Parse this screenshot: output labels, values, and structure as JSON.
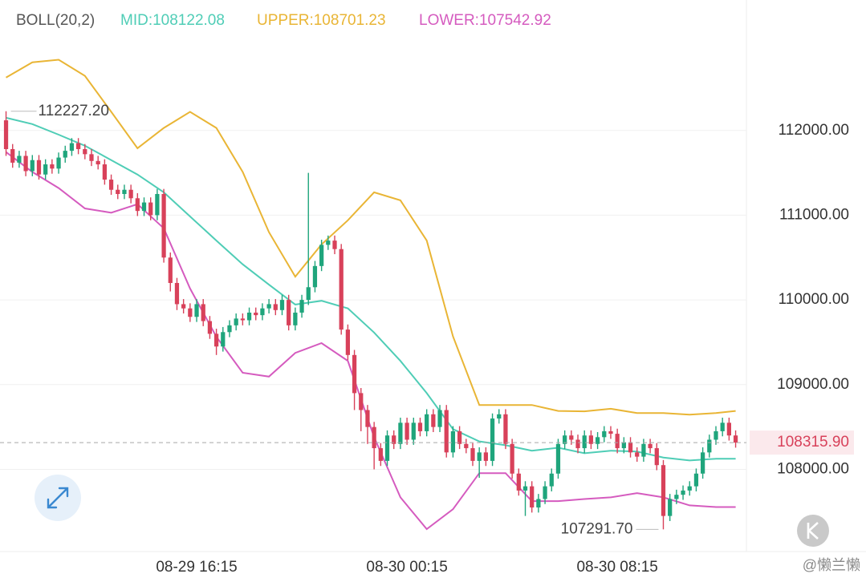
{
  "chart_data": {
    "type": "candlestick",
    "indicator": "BOLL(20,2)",
    "xlim": [
      -0.92,
      112.64
    ],
    "ylim": [
      107030,
      113540
    ],
    "xticks": [
      {
        "value": 29,
        "label": "08-29 16:15"
      },
      {
        "value": 61,
        "label": "08-30 00:15"
      },
      {
        "value": 93,
        "label": "08-30 08:15"
      }
    ],
    "yticks": [
      {
        "value": 108000,
        "label": "108000.00"
      },
      {
        "value": 109000,
        "label": "109000.00"
      },
      {
        "value": 110000,
        "label": "110000.00"
      },
      {
        "value": 111000,
        "label": "111000.00"
      },
      {
        "value": 112000,
        "label": "112000.00"
      }
    ],
    "grid": true,
    "up_color": "#1fa57c",
    "down_color": "#d8415a",
    "candles": {
      "open": [
        112120,
        111780,
        111620,
        111700,
        111520,
        111650,
        111480,
        111600,
        111550,
        111680,
        111760,
        111850,
        111780,
        111720,
        111640,
        111600,
        111420,
        111300,
        111250,
        111300,
        111200,
        111050,
        111150,
        111000,
        111250,
        110500,
        110200,
        109950,
        109900,
        109800,
        109950,
        109750,
        109600,
        109450,
        109620,
        109700,
        109780,
        109760,
        109850,
        109820,
        109900,
        109950,
        109880,
        110000,
        109700,
        109850,
        110000,
        110150,
        110400,
        110650,
        110700,
        110600,
        109650,
        109350,
        108900,
        108700,
        108500,
        108250,
        108100,
        108400,
        108300,
        108550,
        108350,
        108550,
        108450,
        108650,
        108500,
        108700,
        108200,
        108450,
        108300,
        108250,
        108100,
        108200,
        108100,
        108600,
        108650,
        108300,
        107950,
        107750,
        107800,
        107550,
        107650,
        107800,
        107950,
        108300,
        108400,
        108350,
        108250,
        108400,
        108300,
        108380,
        108450,
        108420,
        108250,
        108320,
        108200,
        108150,
        108300,
        108250,
        108050,
        107450,
        107650,
        107700,
        107750,
        107800,
        107950,
        108200,
        108350,
        108450,
        108550,
        108400
      ],
      "high": [
        112227.2,
        111840,
        111760,
        111760,
        111710,
        111710,
        111660,
        111660,
        111740,
        111820,
        111910,
        111910,
        111840,
        111780,
        111700,
        111660,
        111480,
        111360,
        111360,
        111360,
        111260,
        111210,
        111210,
        111310,
        111310,
        110560,
        110260,
        110010,
        109960,
        110010,
        110010,
        109810,
        109660,
        109680,
        109760,
        109840,
        109840,
        109910,
        109910,
        109960,
        110010,
        110010,
        110060,
        110060,
        109910,
        110060,
        111500,
        110460,
        110710,
        110760,
        110760,
        110660,
        109710,
        109410,
        108960,
        108760,
        108560,
        108310,
        108460,
        108460,
        108610,
        108610,
        108610,
        108610,
        108710,
        108710,
        108760,
        108760,
        108510,
        108510,
        108360,
        108310,
        108260,
        108260,
        108660,
        108710,
        108710,
        108360,
        108010,
        107860,
        107860,
        107710,
        107860,
        108010,
        108360,
        108460,
        108460,
        108410,
        108460,
        108460,
        108440,
        108510,
        108510,
        108480,
        108380,
        108380,
        108260,
        108360,
        108360,
        108310,
        108110,
        107710,
        107760,
        107810,
        107860,
        108010,
        108260,
        108410,
        108510,
        108610,
        108610,
        108460
      ],
      "low": [
        111700,
        111560,
        111560,
        111460,
        111460,
        111420,
        111420,
        111490,
        111490,
        111620,
        111700,
        111720,
        111660,
        111580,
        111540,
        111360,
        111240,
        111190,
        111190,
        111140,
        110990,
        110990,
        110940,
        110940,
        110440,
        110100,
        109880,
        109840,
        109740,
        109740,
        109690,
        109540,
        109350,
        109390,
        109560,
        109640,
        109700,
        109700,
        109760,
        109760,
        109840,
        109820,
        109820,
        109640,
        109640,
        109790,
        109940,
        110090,
        110340,
        110590,
        110540,
        109590,
        109290,
        108700,
        108450,
        108300,
        108000,
        108040,
        108040,
        108240,
        108240,
        108290,
        108290,
        108390,
        108390,
        108440,
        108440,
        108140,
        108140,
        108240,
        108190,
        108040,
        107900,
        108040,
        108040,
        108540,
        108240,
        107890,
        107690,
        107450,
        107490,
        107490,
        107590,
        107740,
        107890,
        108240,
        108290,
        108190,
        108190,
        108240,
        108240,
        108320,
        108360,
        108190,
        108190,
        108140,
        108090,
        108090,
        108190,
        107990,
        107291.7,
        107390,
        107590,
        107640,
        107690,
        107740,
        107890,
        108140,
        108290,
        108390,
        108340,
        108256
      ],
      "close": [
        111780,
        111620,
        111700,
        111520,
        111650,
        111480,
        111600,
        111550,
        111680,
        111760,
        111850,
        111780,
        111720,
        111640,
        111600,
        111420,
        111300,
        111250,
        111300,
        111200,
        111050,
        111150,
        111000,
        111250,
        110500,
        110200,
        109950,
        109900,
        109800,
        109950,
        109750,
        109600,
        109450,
        109620,
        109700,
        109780,
        109760,
        109850,
        109820,
        109900,
        109950,
        109880,
        110000,
        109700,
        109850,
        110000,
        110150,
        110400,
        110650,
        110700,
        110600,
        109650,
        109350,
        108900,
        108700,
        108500,
        108250,
        108100,
        108400,
        108300,
        108550,
        108350,
        108550,
        108450,
        108650,
        108500,
        108700,
        108200,
        108450,
        108300,
        108250,
        108100,
        108200,
        108100,
        108600,
        108650,
        108300,
        107950,
        107750,
        107800,
        107550,
        107650,
        107800,
        107950,
        108300,
        108400,
        108350,
        108250,
        108400,
        108300,
        108380,
        108450,
        108420,
        108250,
        108320,
        108200,
        108150,
        108300,
        108250,
        108050,
        107450,
        107650,
        107700,
        107750,
        107800,
        107950,
        108200,
        108350,
        108450,
        108550,
        108400,
        108315.9
      ]
    },
    "bands": {
      "x": [
        0,
        4,
        8,
        12,
        16,
        20,
        24,
        28,
        32,
        36,
        40,
        44,
        48,
        52,
        56,
        60,
        64,
        68,
        72,
        76,
        80,
        84,
        88,
        92,
        96,
        100,
        104,
        108,
        111
      ],
      "series": [
        {
          "name": "MID:108122.08",
          "color": "#4fcdb6",
          "values": [
            112150,
            112075,
            111950,
            111820,
            111650,
            111480,
            111270,
            110985,
            110700,
            110420,
            110180,
            109945,
            109990,
            109900,
            109615,
            109280,
            108900,
            108475,
            108330,
            108285,
            108220,
            108255,
            108190,
            108220,
            108210,
            108140,
            108105,
            108125,
            108125
          ]
        },
        {
          "name": "UPPER:108701.23",
          "color": "#e9b535",
          "values": [
            112625,
            112805,
            112835,
            112645,
            112220,
            111790,
            112030,
            112220,
            112030,
            111510,
            110800,
            110275,
            110655,
            110940,
            111270,
            111175,
            110700,
            109570,
            108760,
            108760,
            108760,
            108690,
            108685,
            108715,
            108665,
            108665,
            108645,
            108665,
            108690
          ]
        },
        {
          "name": "LOWER:107542.92",
          "color": "#d55bbf",
          "values": [
            111745,
            111510,
            111320,
            111080,
            111030,
            111130,
            110845,
            110135,
            109565,
            109140,
            109095,
            109375,
            109490,
            109280,
            108380,
            107670,
            107295,
            107530,
            107955,
            107955,
            107625,
            107625,
            107650,
            107670,
            107720,
            107670,
            107575,
            107555,
            107555
          ]
        }
      ]
    },
    "max_marker": {
      "index": 0,
      "value": 112227.2,
      "label": "112227.20"
    },
    "min_marker": {
      "index": 100,
      "value": 107291.7,
      "label": "107291.70"
    },
    "last_price": {
      "value": 108315.9,
      "label": "108315.90"
    },
    "watermark": "@懒兰懒"
  }
}
